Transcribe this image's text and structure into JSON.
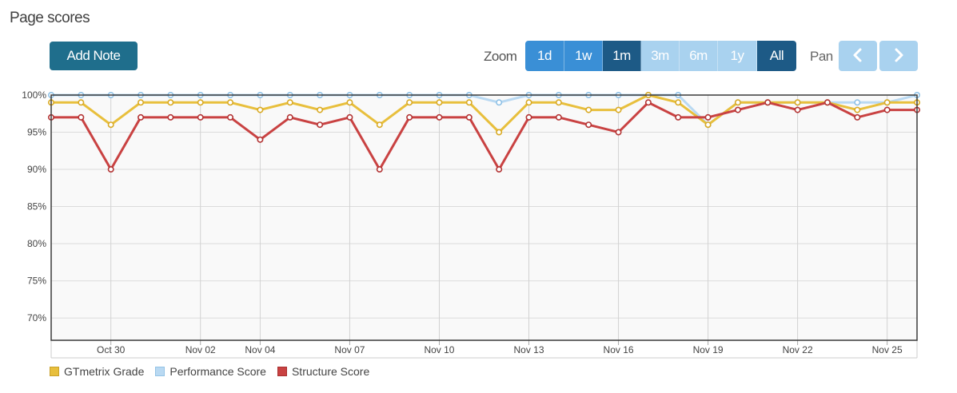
{
  "header": {
    "title": "Page scores"
  },
  "toolbar": {
    "add_note_label": "Add Note",
    "zoom_label": "Zoom",
    "zoom_options": [
      "1d",
      "1w",
      "1m",
      "3m",
      "6m",
      "1y",
      "All"
    ],
    "pan_label": "Pan"
  },
  "icons": {
    "pan_left": "chevron-left-icon",
    "pan_right": "chevron-right-icon"
  },
  "colors": {
    "gtmetrix_grade": "#e8bf3c",
    "performance_score": "#b9d9f2",
    "structure_score": "#c94242",
    "add_note_bg": "#1f6e8c"
  },
  "chart_data": {
    "type": "line",
    "x": [
      "Oct 28",
      "Oct 29",
      "Oct 30",
      "Oct 31",
      "Nov 01",
      "Nov 02",
      "Nov 03",
      "Nov 04",
      "Nov 05",
      "Nov 06",
      "Nov 07",
      "Nov 08",
      "Nov 09",
      "Nov 10",
      "Nov 11",
      "Nov 12",
      "Nov 13",
      "Nov 14",
      "Nov 15",
      "Nov 16",
      "Nov 17",
      "Nov 18",
      "Nov 19",
      "Nov 20",
      "Nov 21",
      "Nov 22",
      "Nov 23",
      "Nov 24",
      "Nov 25",
      "Nov 26"
    ],
    "xtick_labels": [
      "Oct 30",
      "Nov 02",
      "Nov 04",
      "Nov 07",
      "Nov 10",
      "Nov 13",
      "Nov 16",
      "Nov 19",
      "Nov 22",
      "Nov 25"
    ],
    "ytick_labels": [
      "70%",
      "75%",
      "80%",
      "85%",
      "90%",
      "95%",
      "100%"
    ],
    "ylim": [
      67,
      100
    ],
    "grid": true,
    "legend_position": "bottom-left",
    "series": [
      {
        "name": "GTmetrix Grade",
        "values": [
          99,
          99,
          96,
          99,
          99,
          99,
          99,
          98,
          99,
          98,
          99,
          96,
          99,
          99,
          99,
          95,
          99,
          99,
          98,
          98,
          100,
          99,
          96,
          99,
          99,
          99,
          99,
          98,
          99,
          99
        ]
      },
      {
        "name": "Performance Score",
        "values": [
          100,
          100,
          100,
          100,
          100,
          100,
          100,
          100,
          100,
          100,
          100,
          100,
          100,
          100,
          100,
          99,
          100,
          100,
          100,
          100,
          100,
          100,
          96,
          99,
          99,
          99,
          99,
          99,
          99,
          100
        ]
      },
      {
        "name": "Structure Score",
        "values": [
          97,
          97,
          90,
          97,
          97,
          97,
          97,
          94,
          97,
          96,
          97,
          90,
          97,
          97,
          97,
          90,
          97,
          97,
          96,
          95,
          99,
          97,
          97,
          98,
          99,
          98,
          99,
          97,
          98,
          98
        ]
      }
    ]
  }
}
